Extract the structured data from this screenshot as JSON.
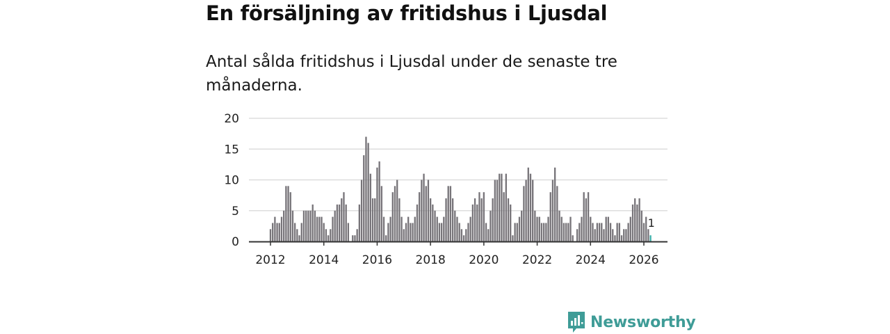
{
  "title": "En försäljning av fritidshus i Ljusdal",
  "subtitle": "Antal sålda fritidshus i Ljusdal under de senaste tre månaderna.",
  "brand": "Newsworthy",
  "colors": {
    "bar": "#767378",
    "highlight": "#3aaea8",
    "grid": "#dddddd",
    "axis": "#333333",
    "brand": "#3f9c97"
  },
  "chart_data": {
    "type": "bar",
    "title": "Antal sålda fritidshus i Ljusdal",
    "xlabel": "",
    "ylabel": "",
    "ylim": [
      0,
      20
    ],
    "yticks": [
      0,
      5,
      10,
      15,
      20
    ],
    "xticks": [
      "2012",
      "2014",
      "2016",
      "2018",
      "2020",
      "2022",
      "2024",
      "2026"
    ],
    "start": "2012-01",
    "frequency": "monthly",
    "values": [
      2,
      3,
      4,
      3,
      3,
      4,
      5,
      9,
      9,
      8,
      5,
      3,
      2,
      1,
      3,
      5,
      5,
      5,
      5,
      6,
      5,
      4,
      4,
      4,
      3,
      2,
      1,
      2,
      4,
      5,
      6,
      6,
      7,
      8,
      6,
      3,
      0,
      1,
      1,
      2,
      6,
      10,
      14,
      17,
      16,
      11,
      7,
      7,
      12,
      13,
      9,
      4,
      1,
      3,
      4,
      8,
      9,
      10,
      7,
      4,
      2,
      3,
      4,
      3,
      3,
      4,
      6,
      8,
      10,
      11,
      9,
      10,
      7,
      6,
      5,
      4,
      3,
      3,
      4,
      7,
      9,
      9,
      7,
      5,
      4,
      3,
      2,
      1,
      2,
      3,
      4,
      6,
      7,
      6,
      8,
      7,
      8,
      3,
      2,
      5,
      7,
      10,
      10,
      11,
      11,
      8,
      11,
      7,
      6,
      1,
      3,
      3,
      4,
      5,
      9,
      10,
      12,
      11,
      10,
      5,
      4,
      4,
      3,
      3,
      3,
      4,
      8,
      10,
      12,
      9,
      5,
      4,
      3,
      3,
      3,
      4,
      1,
      0,
      2,
      3,
      4,
      8,
      7,
      8,
      4,
      3,
      2,
      3,
      3,
      3,
      2,
      4,
      4,
      3,
      2,
      1,
      3,
      3,
      1,
      2,
      2,
      3,
      4,
      6,
      7,
      6,
      7,
      5,
      3,
      4,
      2,
      1
    ],
    "highlight_last": true,
    "annotation": "1"
  }
}
